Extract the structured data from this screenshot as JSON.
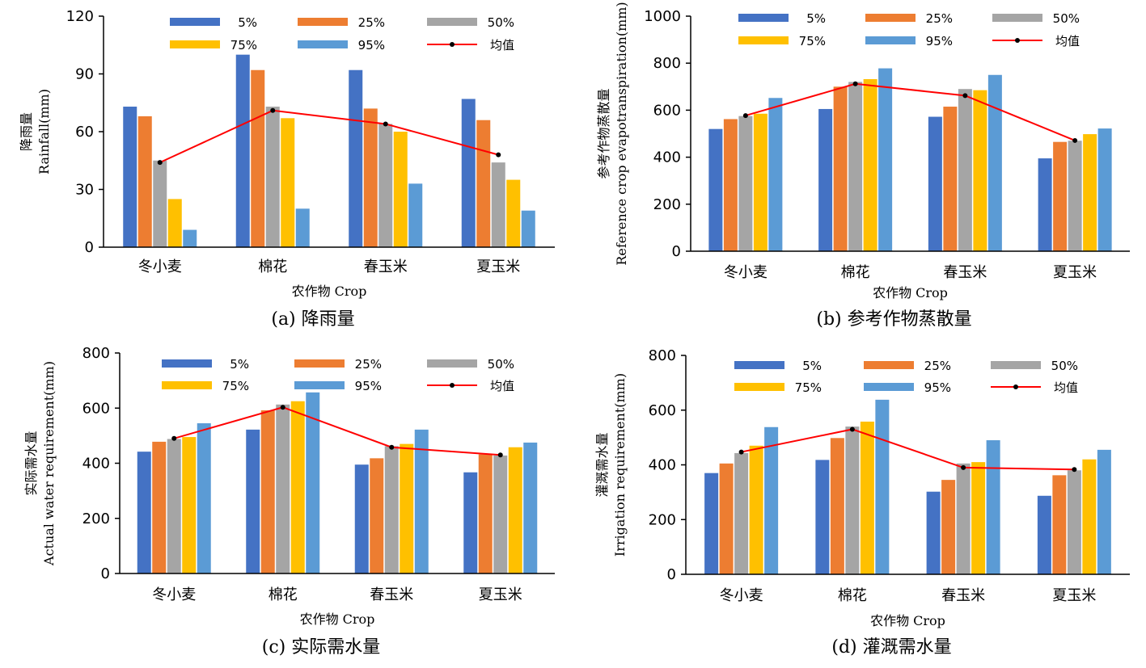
{
  "colors": {
    "5%": "#4472C4",
    "25%": "#ED7D31",
    "50%": "#A5A5A5",
    "75%": "#FFC000",
    "95%": "#5B9BD5",
    "mean": "#FF0000",
    "mean_marker": "#000000"
  },
  "chart_data": [
    {
      "type": "bar",
      "caption": "(a) 降雨量",
      "xlabel": "农作物 Crop",
      "ylabel_cn": "降雨量",
      "ylabel_en": "Rainfall(mm)",
      "categories": [
        "冬小麦",
        "棉花",
        "春玉米",
        "夏玉米"
      ],
      "ylim": [
        0,
        120
      ],
      "yticks": [
        0,
        30,
        60,
        90,
        120
      ],
      "series": [
        {
          "name": "5%",
          "values": [
            73,
            100,
            92,
            77
          ]
        },
        {
          "name": "25%",
          "values": [
            68,
            92,
            72,
            66
          ]
        },
        {
          "name": "50%",
          "values": [
            45,
            73,
            64,
            44
          ]
        },
        {
          "name": "75%",
          "values": [
            25,
            67,
            60,
            35
          ]
        },
        {
          "name": "95%",
          "values": [
            9,
            20,
            33,
            19
          ]
        }
      ],
      "mean": {
        "name": "均值",
        "values": [
          44,
          71,
          64,
          48
        ]
      }
    },
    {
      "type": "bar",
      "caption": "(b) 参考作物蒸散量",
      "xlabel": "农作物 Crop",
      "ylabel_cn": "参考作物蒸散量",
      "ylabel_en": "Reference crop evapotranspiration(mm)",
      "categories": [
        "冬小麦",
        "棉花",
        "春玉米",
        "夏玉米"
      ],
      "ylim": [
        0,
        1000
      ],
      "yticks": [
        0,
        200,
        400,
        600,
        800,
        1000
      ],
      "series": [
        {
          "name": "5%",
          "values": [
            520,
            605,
            572,
            395
          ]
        },
        {
          "name": "25%",
          "values": [
            562,
            700,
            615,
            465
          ]
        },
        {
          "name": "50%",
          "values": [
            575,
            720,
            690,
            470
          ]
        },
        {
          "name": "75%",
          "values": [
            585,
            732,
            685,
            498
          ]
        },
        {
          "name": "95%",
          "values": [
            652,
            778,
            750,
            522
          ]
        }
      ],
      "mean": {
        "name": "均值",
        "values": [
          577,
          712,
          662,
          471
        ]
      }
    },
    {
      "type": "bar",
      "caption": "(c) 实际需水量",
      "xlabel": "农作物 Crop",
      "ylabel_cn": "实际需水量",
      "ylabel_en": "Actual water requirement(mm)",
      "categories": [
        "冬小麦",
        "棉花",
        "春玉米",
        "夏玉米"
      ],
      "ylim": [
        0,
        800
      ],
      "yticks": [
        0,
        200,
        400,
        600,
        800
      ],
      "series": [
        {
          "name": "5%",
          "values": [
            442,
            522,
            395,
            367
          ]
        },
        {
          "name": "25%",
          "values": [
            478,
            592,
            418,
            432
          ]
        },
        {
          "name": "50%",
          "values": [
            488,
            613,
            462,
            428
          ]
        },
        {
          "name": "75%",
          "values": [
            495,
            625,
            470,
            458
          ]
        },
        {
          "name": "95%",
          "values": [
            545,
            657,
            522,
            475
          ]
        }
      ],
      "mean": {
        "name": "均值",
        "values": [
          490,
          603,
          458,
          430
        ]
      }
    },
    {
      "type": "bar",
      "caption": "(d) 灌溉需水量",
      "xlabel": "农作物 Crop",
      "ylabel_cn": "灌溉需水量",
      "ylabel_en": "Irrigation requirement(mm)",
      "categories": [
        "冬小麦",
        "棉花",
        "春玉米",
        "夏玉米"
      ],
      "ylim": [
        0,
        800
      ],
      "yticks": [
        0,
        200,
        400,
        600,
        800
      ],
      "series": [
        {
          "name": "5%",
          "values": [
            370,
            418,
            302,
            287
          ]
        },
        {
          "name": "25%",
          "values": [
            405,
            498,
            345,
            362
          ]
        },
        {
          "name": "50%",
          "values": [
            443,
            540,
            405,
            380
          ]
        },
        {
          "name": "75%",
          "values": [
            470,
            558,
            410,
            420
          ]
        },
        {
          "name": "95%",
          "values": [
            538,
            638,
            490,
            455
          ]
        }
      ],
      "mean": {
        "name": "均值",
        "values": [
          447,
          530,
          390,
          383
        ]
      }
    }
  ]
}
